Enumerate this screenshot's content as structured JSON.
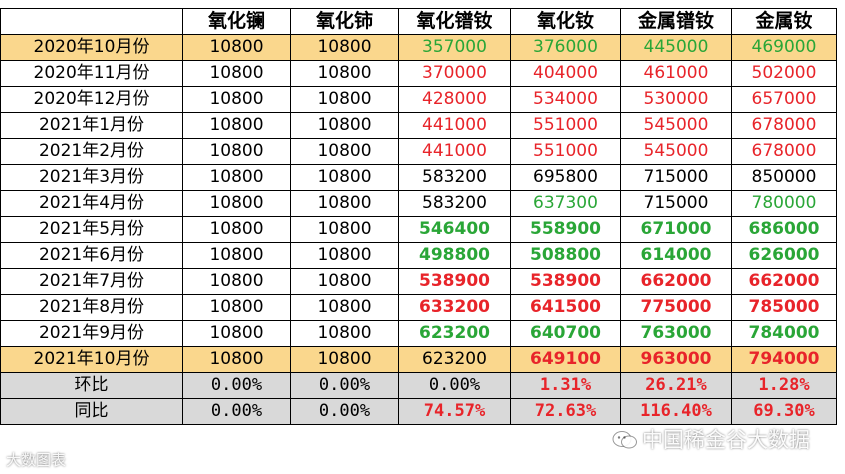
{
  "headers": [
    "",
    "氧化镧",
    "氧化铈",
    "氧化镨钕",
    "氧化钕",
    "金属镨钕",
    "金属钕"
  ],
  "rows": [
    {
      "label": "2020年10月份",
      "style": "hl",
      "cells": [
        {
          "v": "10800",
          "c": "black"
        },
        {
          "v": "10800",
          "c": "black"
        },
        {
          "v": "357000",
          "c": "green"
        },
        {
          "v": "376000",
          "c": "green"
        },
        {
          "v": "445000",
          "c": "green"
        },
        {
          "v": "469000",
          "c": "green"
        }
      ]
    },
    {
      "label": "2020年11月份",
      "style": "",
      "cells": [
        {
          "v": "10800",
          "c": "black"
        },
        {
          "v": "10800",
          "c": "black"
        },
        {
          "v": "370000",
          "c": "red"
        },
        {
          "v": "404000",
          "c": "red"
        },
        {
          "v": "461000",
          "c": "red"
        },
        {
          "v": "502000",
          "c": "red"
        }
      ]
    },
    {
      "label": "2020年12月份",
      "style": "",
      "cells": [
        {
          "v": "10800",
          "c": "black"
        },
        {
          "v": "10800",
          "c": "black"
        },
        {
          "v": "428000",
          "c": "red"
        },
        {
          "v": "534000",
          "c": "red"
        },
        {
          "v": "530000",
          "c": "red"
        },
        {
          "v": "657000",
          "c": "red"
        }
      ]
    },
    {
      "label": "2021年1月份",
      "style": "",
      "cells": [
        {
          "v": "10800",
          "c": "black"
        },
        {
          "v": "10800",
          "c": "black"
        },
        {
          "v": "441000",
          "c": "red"
        },
        {
          "v": "551000",
          "c": "red"
        },
        {
          "v": "545000",
          "c": "red"
        },
        {
          "v": "678000",
          "c": "red"
        }
      ]
    },
    {
      "label": "2021年2月份",
      "style": "",
      "cells": [
        {
          "v": "10800",
          "c": "black"
        },
        {
          "v": "10800",
          "c": "black"
        },
        {
          "v": "441000",
          "c": "red"
        },
        {
          "v": "551000",
          "c": "red"
        },
        {
          "v": "545000",
          "c": "red"
        },
        {
          "v": "678000",
          "c": "red"
        }
      ]
    },
    {
      "label": "2021年3月份",
      "style": "",
      "cells": [
        {
          "v": "10800",
          "c": "black"
        },
        {
          "v": "10800",
          "c": "black"
        },
        {
          "v": "583200",
          "c": "black"
        },
        {
          "v": "695800",
          "c": "black"
        },
        {
          "v": "715000",
          "c": "black"
        },
        {
          "v": "850000",
          "c": "black"
        }
      ]
    },
    {
      "label": "2021年4月份",
      "style": "",
      "cells": [
        {
          "v": "10800",
          "c": "black"
        },
        {
          "v": "10800",
          "c": "black"
        },
        {
          "v": "583200",
          "c": "black"
        },
        {
          "v": "637300",
          "c": "green"
        },
        {
          "v": "715000",
          "c": "black"
        },
        {
          "v": "780000",
          "c": "green"
        }
      ]
    },
    {
      "label": "2021年5月份",
      "style": "",
      "cells": [
        {
          "v": "10800",
          "c": "black"
        },
        {
          "v": "10800",
          "c": "black"
        },
        {
          "v": "546400",
          "c": "green b"
        },
        {
          "v": "558900",
          "c": "green b"
        },
        {
          "v": "671000",
          "c": "green b"
        },
        {
          "v": "686000",
          "c": "green b"
        }
      ]
    },
    {
      "label": "2021年6月份",
      "style": "",
      "cells": [
        {
          "v": "10800",
          "c": "black"
        },
        {
          "v": "10800",
          "c": "black"
        },
        {
          "v": "498800",
          "c": "green b"
        },
        {
          "v": "508800",
          "c": "green b"
        },
        {
          "v": "614000",
          "c": "green b"
        },
        {
          "v": "626000",
          "c": "green b"
        }
      ]
    },
    {
      "label": "2021年7月份",
      "style": "",
      "cells": [
        {
          "v": "10800",
          "c": "black"
        },
        {
          "v": "10800",
          "c": "black"
        },
        {
          "v": "538900",
          "c": "red b"
        },
        {
          "v": "538900",
          "c": "red b"
        },
        {
          "v": "662000",
          "c": "red b"
        },
        {
          "v": "662000",
          "c": "red b"
        }
      ]
    },
    {
      "label": "2021年8月份",
      "style": "",
      "cells": [
        {
          "v": "10800",
          "c": "black"
        },
        {
          "v": "10800",
          "c": "black"
        },
        {
          "v": "633200",
          "c": "red b"
        },
        {
          "v": "641500",
          "c": "red b"
        },
        {
          "v": "775000",
          "c": "red b"
        },
        {
          "v": "785000",
          "c": "red b"
        }
      ]
    },
    {
      "label": "2021年9月份",
      "style": "",
      "cells": [
        {
          "v": "10800",
          "c": "black"
        },
        {
          "v": "10800",
          "c": "black"
        },
        {
          "v": "623200",
          "c": "green b"
        },
        {
          "v": "640700",
          "c": "green b"
        },
        {
          "v": "763000",
          "c": "green b"
        },
        {
          "v": "784000",
          "c": "green b"
        }
      ]
    },
    {
      "label": "2021年10月份",
      "style": "hl",
      "cells": [
        {
          "v": "10800",
          "c": "black"
        },
        {
          "v": "10800",
          "c": "black"
        },
        {
          "v": "623200",
          "c": "black"
        },
        {
          "v": "649100",
          "c": "red b"
        },
        {
          "v": "963000",
          "c": "red b"
        },
        {
          "v": "794000",
          "c": "red b"
        }
      ]
    },
    {
      "label": "环比",
      "style": "gray",
      "cells": [
        {
          "v": "0.00%",
          "c": "black mono"
        },
        {
          "v": "0.00%",
          "c": "black mono"
        },
        {
          "v": "0.00%",
          "c": "black mono"
        },
        {
          "v": "1.31%",
          "c": "red b mono"
        },
        {
          "v": "26.21%",
          "c": "red b mono"
        },
        {
          "v": "1.28%",
          "c": "red b mono"
        }
      ]
    },
    {
      "label": "同比",
      "style": "gray",
      "cells": [
        {
          "v": "0.00%",
          "c": "black mono"
        },
        {
          "v": "0.00%",
          "c": "black mono"
        },
        {
          "v": "74.57%",
          "c": "red b mono"
        },
        {
          "v": "72.63%",
          "c": "red b mono"
        },
        {
          "v": "116.40%",
          "c": "red b mono"
        },
        {
          "v": "69.30%",
          "c": "red b mono"
        }
      ]
    }
  ],
  "watermarks": {
    "left": "大数图表",
    "right": "中国稀金谷大数据"
  }
}
